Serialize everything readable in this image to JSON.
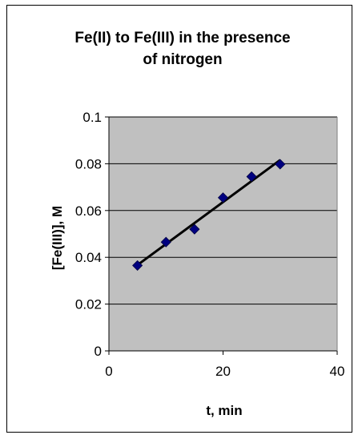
{
  "chart_data": {
    "type": "scatter",
    "title_lines": [
      "Fe(II) to Fe(III) in the presence",
      "of nitrogen"
    ],
    "xlabel": "t, min",
    "ylabel": "[Fe(III)], M",
    "xlim": [
      0,
      40
    ],
    "ylim": [
      0,
      0.1
    ],
    "xticks": [
      0,
      20,
      40
    ],
    "xtick_labels": [
      "0",
      "20",
      "40"
    ],
    "yticks": [
      0,
      0.02,
      0.04,
      0.06,
      0.08,
      0.1
    ],
    "ytick_labels": [
      "0",
      "0.02",
      "0.04",
      "0.06",
      "0.08",
      "0.1"
    ],
    "grid": "horizontal",
    "plot_background": "#c0c0c0",
    "series": [
      {
        "marker": "diamond",
        "color": "#000080",
        "points": [
          {
            "x": 5,
            "y": 0.0365
          },
          {
            "x": 10,
            "y": 0.0465
          },
          {
            "x": 15,
            "y": 0.052
          },
          {
            "x": 20,
            "y": 0.0655
          },
          {
            "x": 25,
            "y": 0.0745
          },
          {
            "x": 30,
            "y": 0.0798
          }
        ]
      }
    ],
    "trendline": {
      "type": "linear",
      "color": "#000000",
      "x_range": [
        5,
        30
      ]
    }
  }
}
